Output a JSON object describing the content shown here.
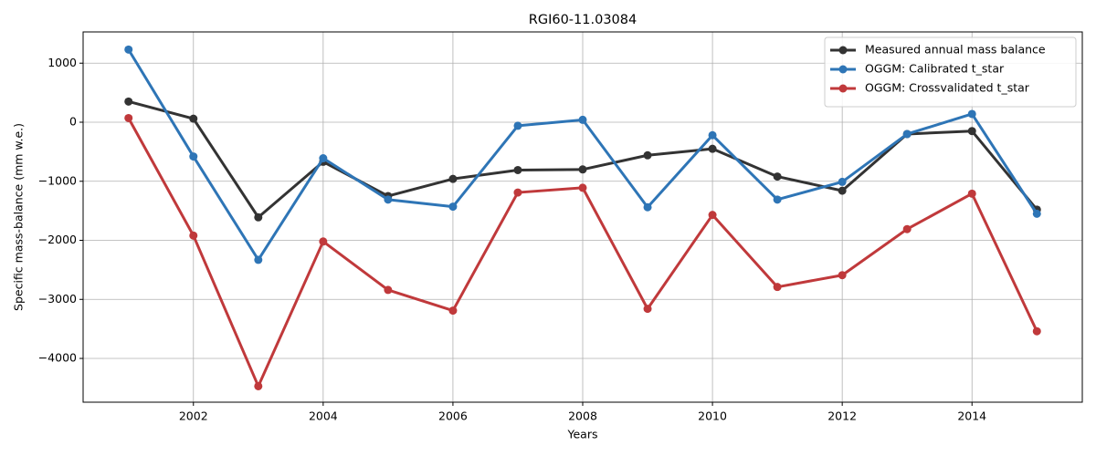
{
  "chart_data": {
    "type": "line",
    "title": "RGI60-11.03084",
    "xlabel": "Years",
    "ylabel": "Specific mass-balance (mm w.e.)",
    "x": [
      2001,
      2002,
      2003,
      2004,
      2005,
      2006,
      2007,
      2008,
      2009,
      2010,
      2011,
      2012,
      2013,
      2014,
      2015
    ],
    "series": [
      {
        "name": "Measured annual mass balance",
        "color": "#333333",
        "values": [
          350,
          60,
          -1610,
          -670,
          -1250,
          -960,
          -810,
          -800,
          -560,
          -450,
          -920,
          -1160,
          -200,
          -150,
          -1480
        ]
      },
      {
        "name": "OGGM: Calibrated t_star",
        "color": "#2e75b6",
        "values": [
          1230,
          -580,
          -2330,
          -610,
          -1310,
          -1430,
          -60,
          40,
          -1440,
          -220,
          -1310,
          -1010,
          -200,
          140,
          -1550
        ]
      },
      {
        "name": "OGGM: Crossvalidated t_star",
        "color": "#c0393b",
        "values": [
          70,
          -1920,
          -4470,
          -2020,
          -2840,
          -3190,
          -1190,
          -1110,
          -3160,
          -1570,
          -2790,
          -2590,
          -1810,
          -1210,
          -3540
        ]
      }
    ],
    "xlim": [
      2000.3,
      2015.7
    ],
    "xticks": [
      2002,
      2004,
      2006,
      2008,
      2010,
      2012,
      2014
    ],
    "ylim": [
      -4741,
      1529
    ],
    "yticks": [
      {
        "value": -4000,
        "label": "−4000"
      },
      {
        "value": -3000,
        "label": "−3000"
      },
      {
        "value": -2000,
        "label": "−2000"
      },
      {
        "value": -1000,
        "label": "−1000"
      },
      0,
      1000
    ],
    "grid": true,
    "legend": "upper right"
  }
}
